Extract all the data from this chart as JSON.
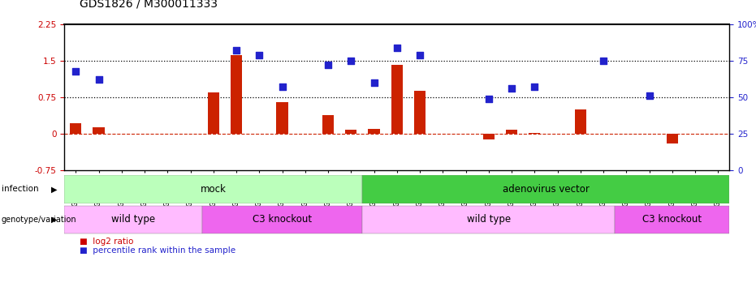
{
  "title": "GDS1826 / M300011333",
  "samples": [
    "GSM87316",
    "GSM87317",
    "GSM93998",
    "GSM93999",
    "GSM94000",
    "GSM94001",
    "GSM93633",
    "GSM93634",
    "GSM93651",
    "GSM93652",
    "GSM93653",
    "GSM93654",
    "GSM93657",
    "GSM86643",
    "GSM87306",
    "GSM87307",
    "GSM87308",
    "GSM87309",
    "GSM87310",
    "GSM87311",
    "GSM87312",
    "GSM87313",
    "GSM87314",
    "GSM87315",
    "GSM93655",
    "GSM93656",
    "GSM93658",
    "GSM93659",
    "GSM93660"
  ],
  "log2_ratio": [
    0.22,
    0.13,
    0.0,
    0.0,
    0.0,
    0.0,
    0.85,
    1.62,
    0.0,
    0.65,
    0.0,
    0.38,
    0.08,
    0.1,
    1.42,
    0.88,
    0.0,
    0.0,
    -0.12,
    0.08,
    0.02,
    0.0,
    0.5,
    0.0,
    0.0,
    0.0,
    -0.2,
    0.0,
    0.0
  ],
  "percentile_rank": [
    68,
    62,
    null,
    null,
    null,
    null,
    null,
    82,
    79,
    57,
    null,
    72,
    75,
    60,
    84,
    79,
    null,
    null,
    49,
    56,
    57,
    null,
    null,
    75,
    null,
    51,
    null,
    null,
    null
  ],
  "infection_groups": [
    {
      "label": "mock",
      "start": 0,
      "end": 12,
      "color": "#bbffbb"
    },
    {
      "label": "adenovirus vector",
      "start": 13,
      "end": 28,
      "color": "#44cc44"
    }
  ],
  "genotype_groups": [
    {
      "label": "wild type",
      "start": 0,
      "end": 5,
      "color": "#ffbbff"
    },
    {
      "label": "C3 knockout",
      "start": 6,
      "end": 12,
      "color": "#ee66ee"
    },
    {
      "label": "wild type",
      "start": 13,
      "end": 23,
      "color": "#ffbbff"
    },
    {
      "label": "C3 knockout",
      "start": 24,
      "end": 28,
      "color": "#ee66ee"
    }
  ],
  "ylim_left": [
    -0.75,
    2.25
  ],
  "ylim_right": [
    0,
    100
  ],
  "yticks_left": [
    -0.75,
    0,
    0.75,
    1.5,
    2.25
  ],
  "yticks_right": [
    0,
    25,
    50,
    75,
    100
  ],
  "hlines": [
    0.75,
    1.5
  ],
  "bar_color": "#cc2200",
  "dot_color": "#2222cc",
  "dot_size": 30,
  "bar_width": 0.5
}
